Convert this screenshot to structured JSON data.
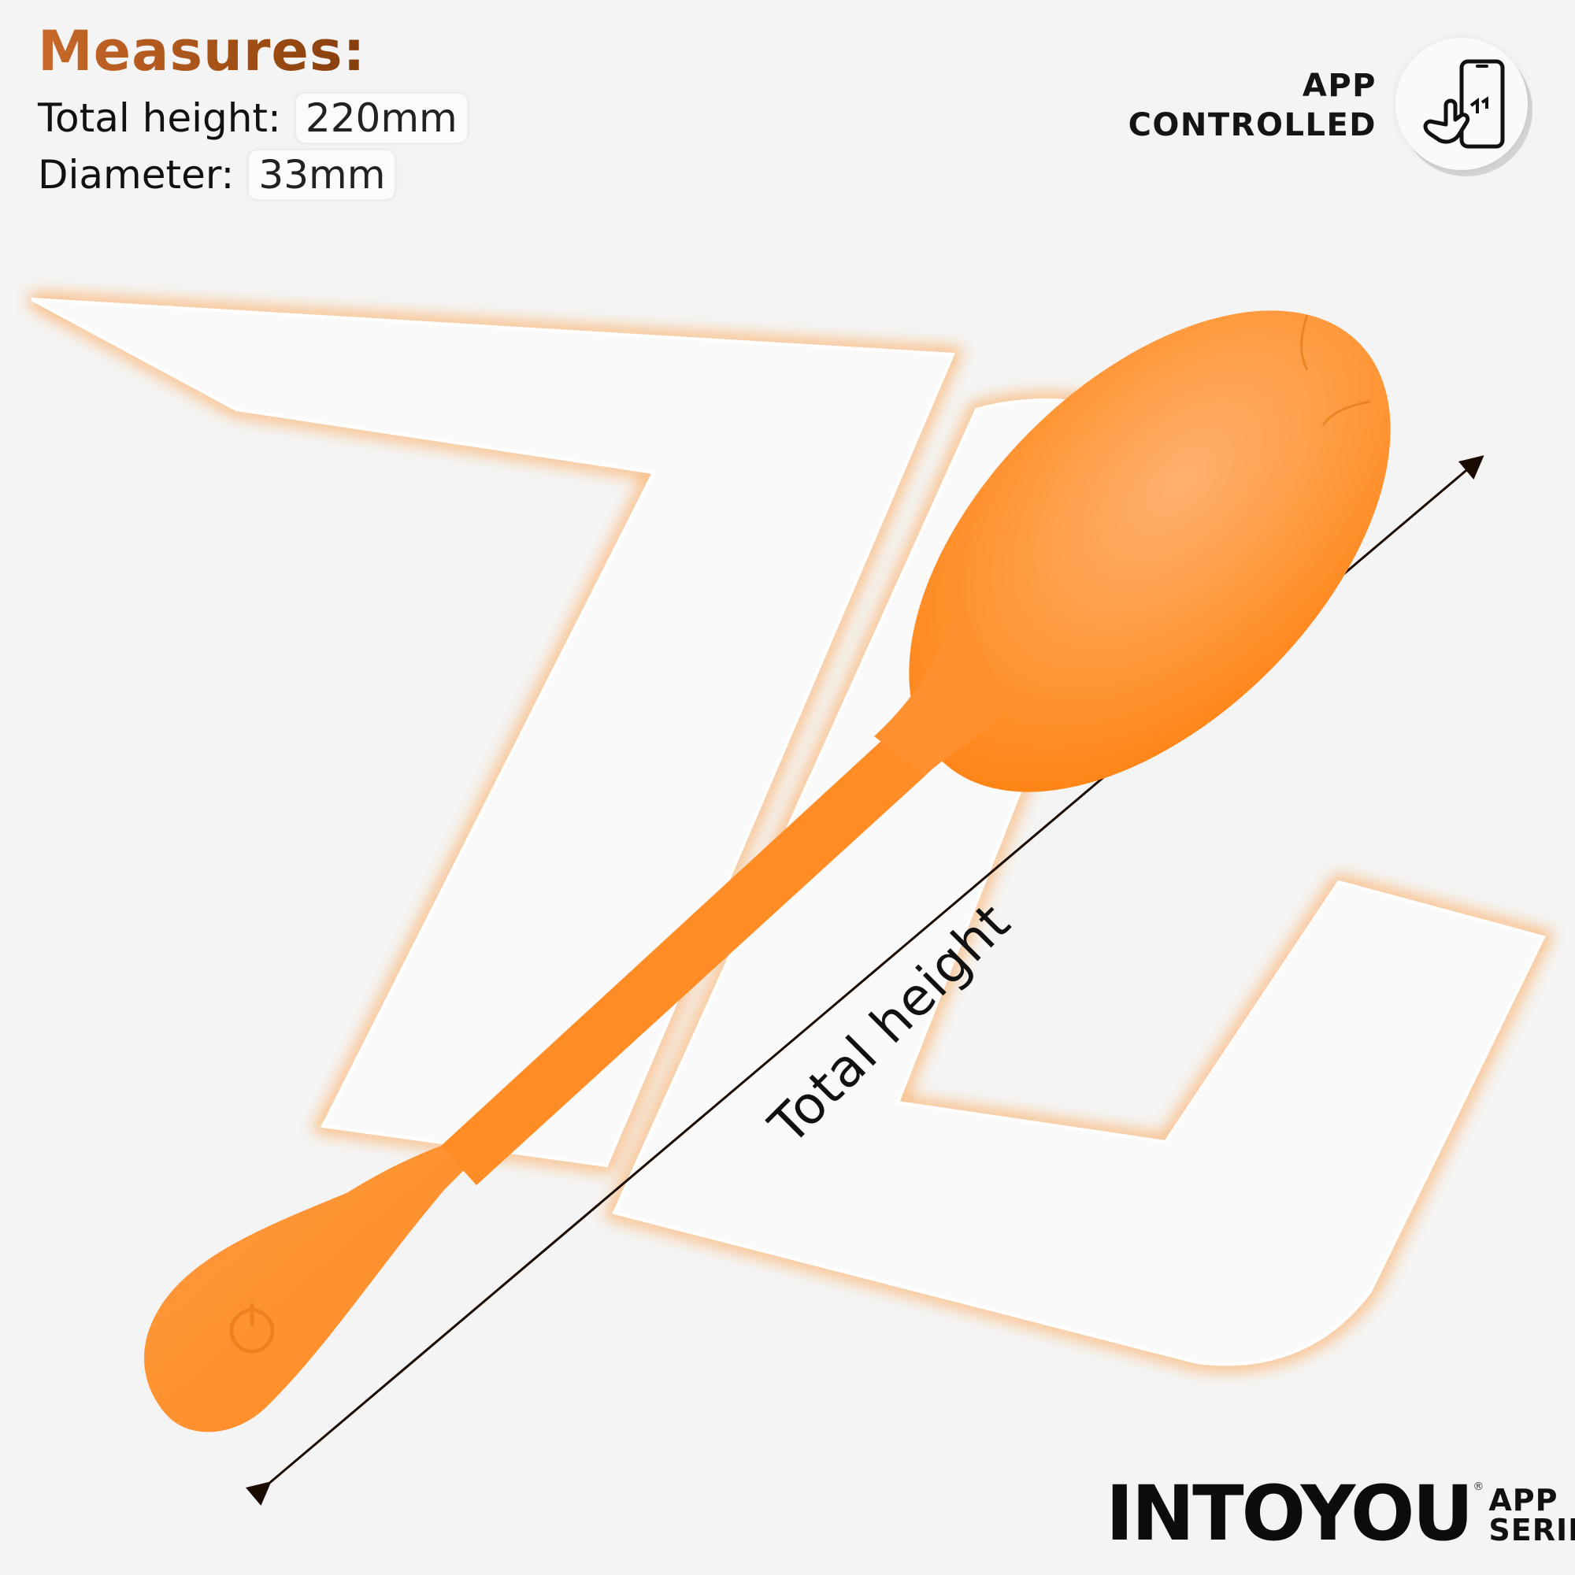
{
  "measures": {
    "title": "Measures:",
    "rows": [
      {
        "label": "Total height:",
        "value": "220mm"
      },
      {
        "label": "Diameter:",
        "value": "33mm"
      }
    ]
  },
  "badge": {
    "line1": "APP",
    "line2": "CONTROLLED",
    "icon": "phone-touch-icon"
  },
  "dimension_label": "Total height",
  "logo": {
    "brand": "INTOYOU",
    "line1": "APP",
    "line2": "SERIES"
  },
  "colors": {
    "accent": "#ff8a1c",
    "product": "#ff8d26",
    "title_gradient_start": "#c8692a",
    "title_gradient_end": "#6b2f0b"
  }
}
